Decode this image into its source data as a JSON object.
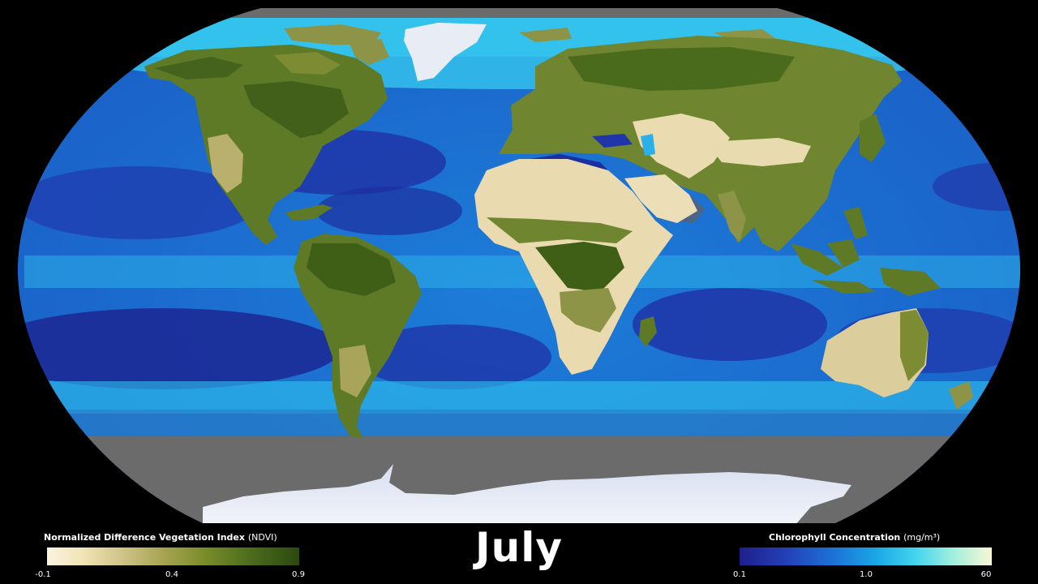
{
  "month": "July",
  "ndvi_legend": {
    "title": "Normalized Difference Vegetation Index",
    "unit": "(NDVI)",
    "ticks": [
      "-0.1",
      "0.4",
      "0.9"
    ],
    "tick_values": [
      -0.1,
      0.4,
      0.9
    ]
  },
  "chlorophyll_legend": {
    "title": "Chlorophyll Concentration",
    "unit": "(mg/m³)",
    "ticks": [
      "0.1",
      "1.0",
      "60"
    ],
    "tick_values": [
      0.1,
      1.0,
      60
    ]
  },
  "colors": {
    "background": "#000000",
    "no_data": "#6b6b6b",
    "ocean_low": "#1c2f9e",
    "ocean_mid": "#1b86dc",
    "ocean_high": "#55e0f0",
    "vegetation_dense": "#3f5f17",
    "vegetation_mid": "#7d8c33",
    "desert": "#eadcb0",
    "ice": "#e8ecf4"
  }
}
